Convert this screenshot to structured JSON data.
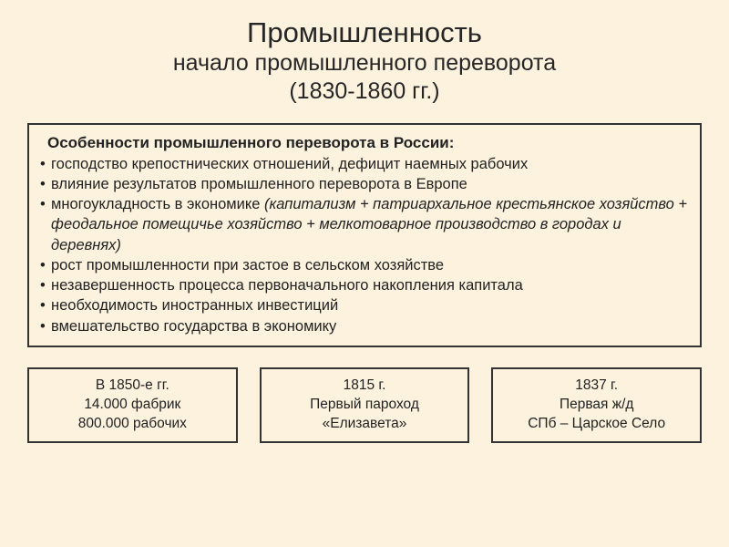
{
  "title": {
    "main": "Промышленность",
    "sub1": "начало промышленного переворота",
    "sub2": "(1830-1860 гг.)"
  },
  "features": {
    "heading": "Особенности промышленного переворота в России:",
    "items": [
      "господство крепостнических отношений, дефицит наемных рабочих",
      "влияние результатов промышленного переворота в Европе",
      "многоукладность в экономике (капитализм + патриархальное крестьянское хозяйство + феодальное помещичье хозяйство + мелкотоварное производство в городах и деревнях)",
      "рост промышленности при застое в сельском хозяйстве",
      "незавершенность процесса первоначального накопления капитала",
      "необходимость иностранных инвестиций",
      "вмешательство государства в экономику"
    ]
  },
  "boxes": [
    {
      "line1": "В 1850-е гг.",
      "line2": "14.000 фабрик",
      "line3": "800.000 рабочих"
    },
    {
      "line1": "1815 г.",
      "line2": "Первый пароход",
      "line3": "«Елизавета»"
    },
    {
      "line1": "1837 г.",
      "line2": "Первая ж/д",
      "line3": "СПб – Царское Село"
    }
  ],
  "style": {
    "background": "#fcf2de",
    "border_color": "#333333",
    "text_color": "#222222",
    "title_fontsize": 31,
    "subtitle_fontsize": 25,
    "body_fontsize": 17,
    "box_fontsize": 15.5
  }
}
